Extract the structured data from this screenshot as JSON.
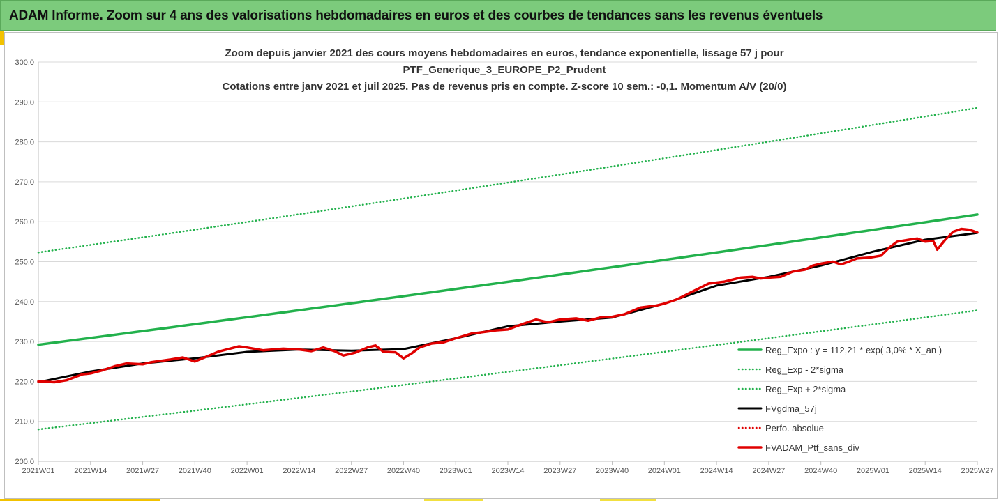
{
  "banner": {
    "title": "ADAM Informe. Zoom sur 4 ans des valorisations hebdomadaires en euros et des courbes de tendances sans les revenus éventuels"
  },
  "chart_data": {
    "type": "line",
    "title_lines": [
      "Zoom depuis janvier 2021 des cours moyens hebdomadaires  en euros, tendance exponentielle, lissage 57 j pour",
      "PTF_Generique_3_EUROPE_P2_Prudent",
      "Cotations entre janv 2021 et juil 2025. Pas de revenus pris en compte. Z-score 10 sem.: -0,1. Momentum A/V (20/0)"
    ],
    "xlabel": "",
    "ylabel": "",
    "ylim": [
      200,
      300
    ],
    "y_ticks": [
      "200,0",
      "210,0",
      "220,0",
      "230,0",
      "240,0",
      "250,0",
      "260,0",
      "270,0",
      "280,0",
      "290,0",
      "300,0"
    ],
    "x_ticks": [
      "2021W01",
      "2021W14",
      "2021W27",
      "2021W40",
      "2022W01",
      "2022W14",
      "2022W27",
      "2022W40",
      "2023W01",
      "2023W14",
      "2023W27",
      "2023W40",
      "2024W01",
      "2024W14",
      "2024W27",
      "2024W40",
      "2025W01",
      "2025W14",
      "2025W27"
    ],
    "x_range_weeks": [
      0,
      234
    ],
    "grid": "horizontal",
    "legend_position": "bottom-right",
    "series": [
      {
        "name": "Reg_Expo : y = 112,21 * exp( 3,0% *  X_an )",
        "color": "#22b14c",
        "style": "solid",
        "x": [
          0,
          234
        ],
        "values": [
          229.2,
          261.8
        ]
      },
      {
        "name": "Reg_Exp - 2*sigma",
        "color": "#22b14c",
        "style": "dotted",
        "x": [
          0,
          234
        ],
        "values": [
          208.0,
          237.8
        ]
      },
      {
        "name": "Reg_Exp + 2*sigma",
        "color": "#22b14c",
        "style": "dotted",
        "x": [
          0,
          234
        ],
        "values": [
          252.3,
          288.5
        ]
      },
      {
        "name": "FVgdma_57j",
        "color": "#000000",
        "style": "solid",
        "x": [
          0,
          13,
          26,
          39,
          52,
          65,
          78,
          91,
          104,
          117,
          130,
          143,
          156,
          169,
          182,
          195,
          208,
          221,
          234
        ],
        "values": [
          219.8,
          222.5,
          224.5,
          225.8,
          227.4,
          228.0,
          227.7,
          228.1,
          230.8,
          233.8,
          235.0,
          236.0,
          239.5,
          244.0,
          246.2,
          249.0,
          252.5,
          255.5,
          257.2
        ]
      },
      {
        "name": "Perfo. absolue",
        "color": "#e00000",
        "style": "dotted",
        "x": [],
        "values": []
      },
      {
        "name": "FVADAM_Ptf_sans_div",
        "color": "#e00000",
        "style": "solid",
        "x": [
          0,
          4,
          7,
          11,
          13,
          16,
          19,
          22,
          26,
          28,
          33,
          36,
          39,
          45,
          50,
          52,
          56,
          61,
          65,
          68,
          71,
          74,
          76,
          79,
          82,
          84,
          86,
          89,
          91,
          93,
          95,
          98,
          101,
          104,
          108,
          112,
          114,
          117,
          121,
          124,
          127,
          130,
          134,
          137,
          140,
          143,
          146,
          150,
          154,
          156,
          159,
          163,
          167,
          171,
          175,
          178,
          180,
          182,
          185,
          188,
          191,
          193,
          195,
          198,
          200,
          202,
          204,
          207,
          210,
          212,
          214,
          217,
          219,
          221,
          223,
          224,
          226,
          228,
          230,
          232,
          234
        ],
        "values": [
          220.0,
          219.8,
          220.3,
          221.8,
          222.0,
          222.8,
          223.8,
          224.5,
          224.3,
          224.8,
          225.5,
          226.0,
          225.0,
          227.5,
          228.8,
          228.5,
          227.8,
          228.2,
          228.0,
          227.6,
          228.5,
          227.5,
          226.5,
          227.2,
          228.5,
          229.0,
          227.4,
          227.3,
          225.8,
          227.0,
          228.5,
          229.5,
          229.8,
          230.8,
          232.0,
          232.5,
          232.8,
          233.0,
          234.5,
          235.5,
          234.8,
          235.5,
          235.8,
          235.2,
          236.0,
          236.2,
          236.8,
          238.5,
          239.0,
          239.5,
          240.5,
          242.5,
          244.5,
          245.0,
          246.0,
          246.2,
          245.8,
          246.0,
          246.2,
          247.5,
          248.0,
          249.0,
          249.5,
          250.0,
          249.3,
          250.0,
          250.8,
          251.0,
          251.5,
          253.5,
          255.0,
          255.5,
          255.8,
          255.0,
          255.2,
          253.0,
          255.5,
          257.5,
          258.2,
          258.0,
          257.3
        ]
      }
    ]
  }
}
